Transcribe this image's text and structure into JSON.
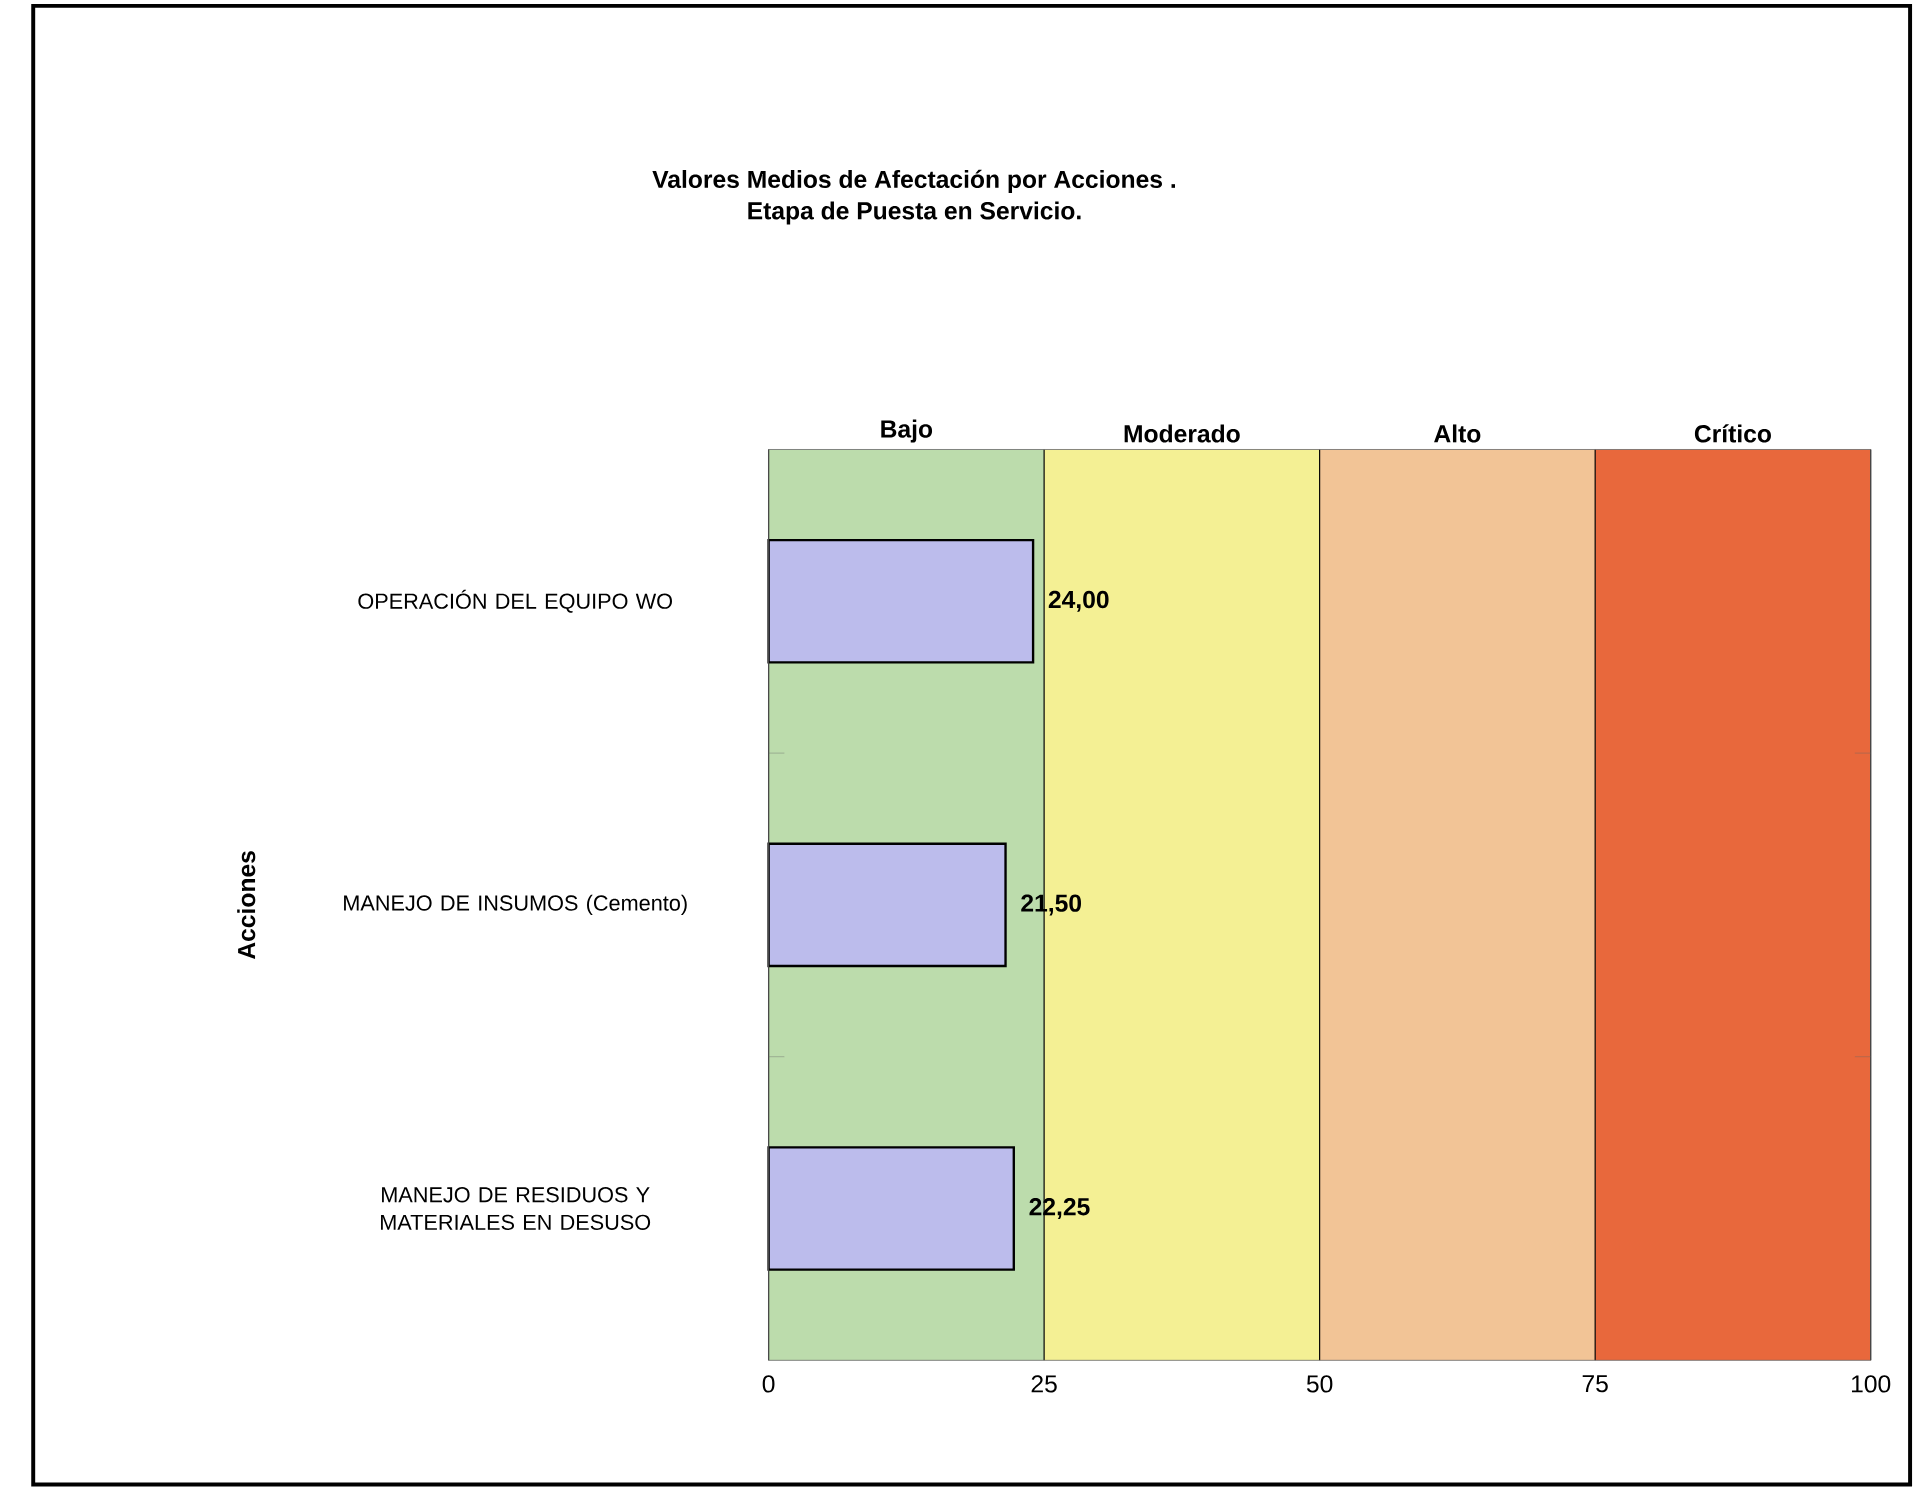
{
  "chart_data": {
    "type": "bar",
    "orientation": "horizontal",
    "title": "Valores Medios de Afectación por Acciones .",
    "subtitle": "Etapa de Puesta en Servicio.",
    "ylabel": "Acciones",
    "categories": [
      "OPERACIÓN DEL EQUIPO WO",
      "MANEJO DE INSUMOS (Cemento)",
      "MANEJO DE RESIDUOS Y MATERIALES EN DESUSO"
    ],
    "values": [
      24,
      21.5,
      22.25
    ],
    "value_labels": [
      "24,00",
      "21,50",
      "22,25"
    ],
    "color": "#bcbcec",
    "xlim": [
      0,
      100
    ],
    "xticks": [
      0,
      25,
      50,
      75,
      100
    ],
    "bands": [
      {
        "axis": "x",
        "from": 0,
        "to": 25,
        "label": "Bajo",
        "color": "#bcdcac"
      },
      {
        "axis": "x",
        "from": 25,
        "to": 50,
        "label": "Moderado",
        "color": "#f4f094"
      },
      {
        "axis": "x",
        "from": 50,
        "to": 75,
        "label": "Alto",
        "color": "#f2c496"
      },
      {
        "axis": "x",
        "from": 75,
        "to": 100,
        "label": "Crítico",
        "color": "#e8683c"
      }
    ],
    "grid": "x"
  }
}
